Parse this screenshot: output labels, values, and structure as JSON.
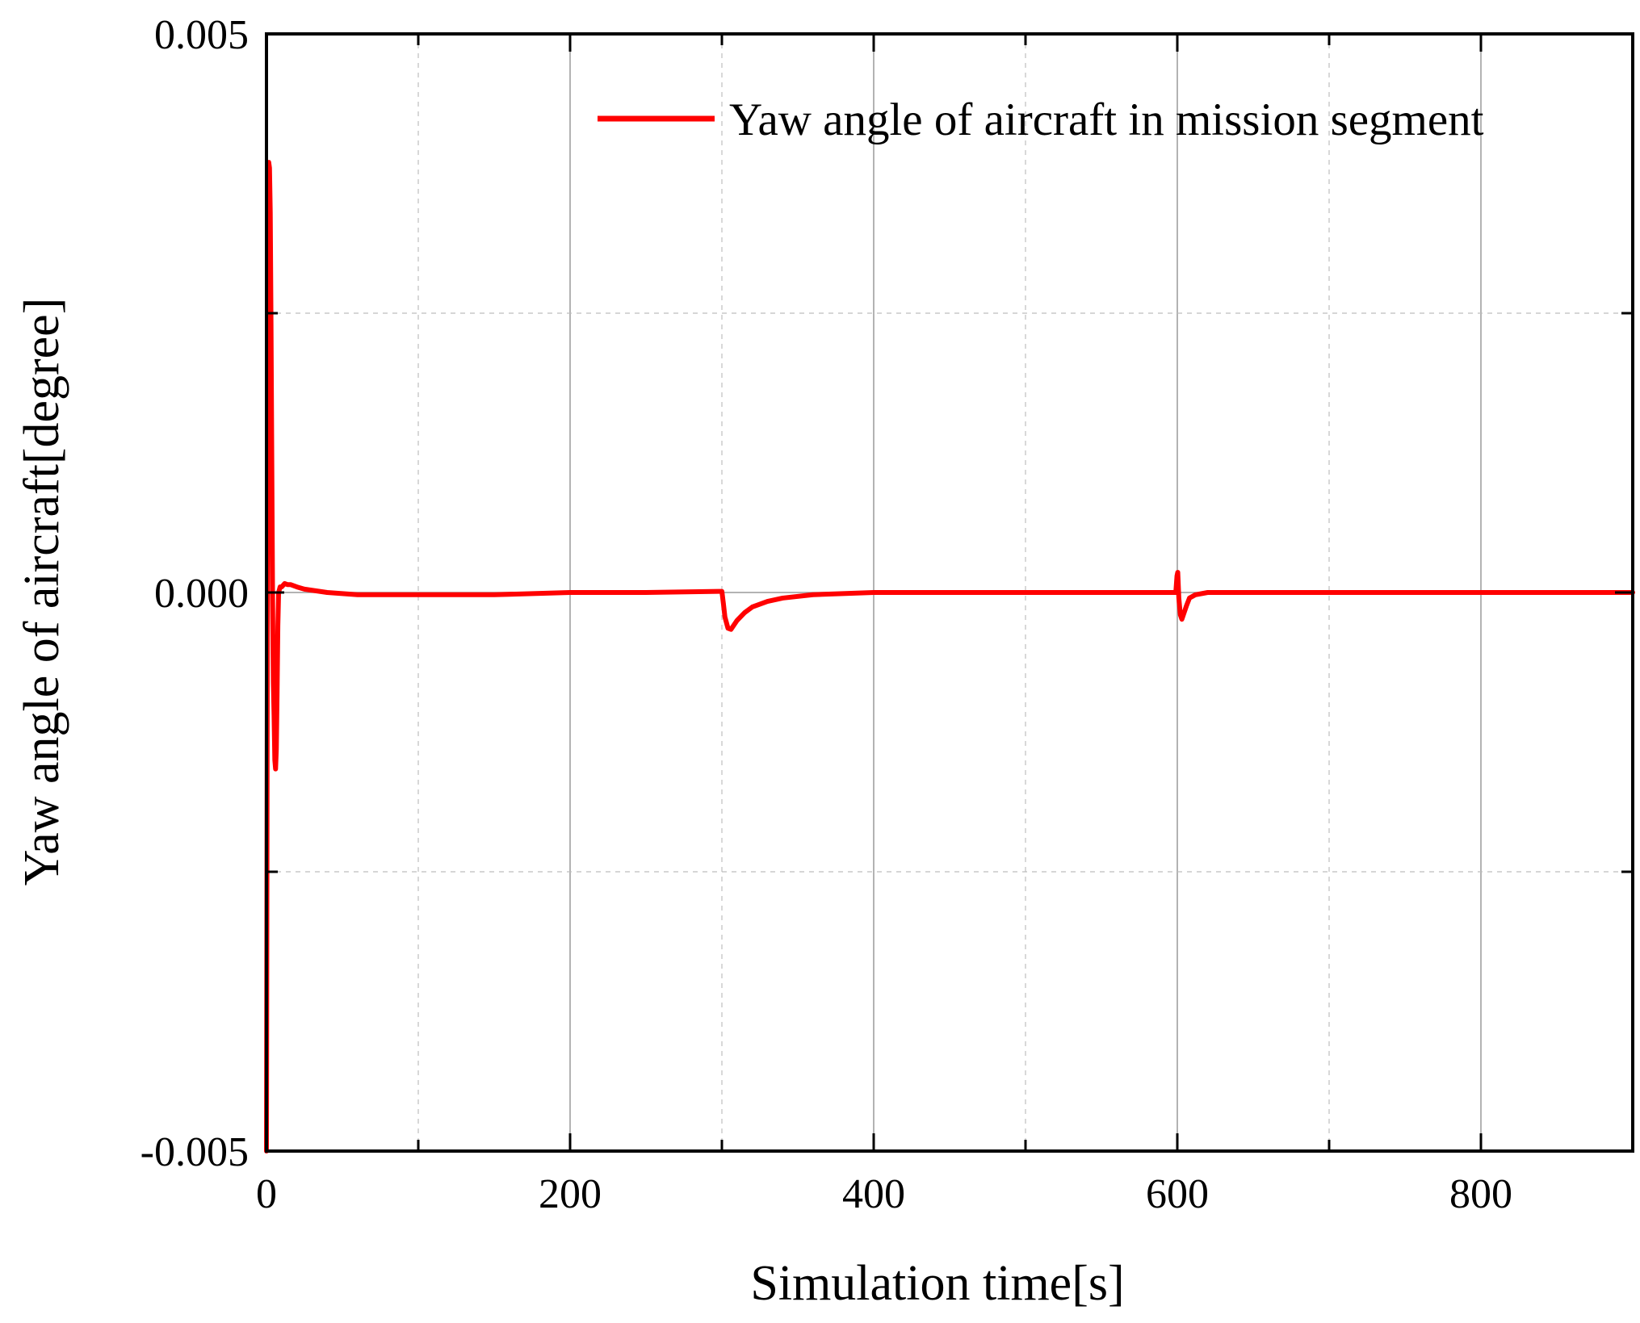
{
  "chart_data": {
    "type": "line",
    "title": "",
    "xlabel": "Simulation time[s]",
    "ylabel": "Yaw angle of aircraft[degree]",
    "xlim": [
      0,
      900
    ],
    "ylim": [
      -0.005,
      0.005
    ],
    "x_ticks": [
      0,
      200,
      400,
      600,
      800
    ],
    "x_tick_labels": [
      "0",
      "200",
      "400",
      "600",
      "800"
    ],
    "x_minor_ticks": [
      100,
      300,
      500,
      700
    ],
    "y_ticks": [
      -0.005,
      0.0,
      0.005
    ],
    "y_tick_labels": [
      "-0.005",
      "0.000",
      "0.005"
    ],
    "y_minor_ticks": [
      -0.0025,
      0.0025
    ],
    "grid": true,
    "legend_position": "top-right",
    "colors": {
      "series": "#ff0000",
      "axis": "#000000",
      "grid": "#bdbdbd"
    },
    "series": [
      {
        "name": "Yaw angle of aircraft in mission segment",
        "x": [
          0,
          0.5,
          1.0,
          1.5,
          2.0,
          2.5,
          3.0,
          3.5,
          4.0,
          4.5,
          5.0,
          5.5,
          6.0,
          6.5,
          7.0,
          7.5,
          8.0,
          9.0,
          10,
          12,
          14,
          16,
          20,
          25,
          30,
          40,
          50,
          60,
          80,
          100,
          150,
          200,
          250,
          299,
          300,
          301,
          302,
          304,
          306,
          310,
          315,
          320,
          330,
          340,
          360,
          400,
          500,
          599,
          599.8,
          600.3,
          601,
          602,
          603,
          604,
          606,
          608,
          612,
          620,
          650,
          700,
          800,
          900
        ],
        "y": [
          -0.005,
          -0.001,
          0.0032,
          0.00385,
          0.0038,
          0.0034,
          0.0024,
          0.0012,
          0.0,
          -0.0008,
          -0.0011,
          -0.0015,
          -0.00158,
          -0.0014,
          -0.0009,
          -0.0003,
          0.0,
          5e-05,
          5e-05,
          8e-05,
          7e-05,
          7e-05,
          5e-05,
          3e-05,
          2e-05,
          0.0,
          -1e-05,
          -2e-05,
          -2e-05,
          -2e-05,
          -2e-05,
          0.0,
          0.0,
          1e-05,
          1e-05,
          -0.0001,
          -0.00022,
          -0.00032,
          -0.00033,
          -0.00025,
          -0.00018,
          -0.00013,
          -8e-05,
          -5e-05,
          -2e-05,
          0.0,
          0.0,
          0.0,
          0.00015,
          0.00018,
          -5e-05,
          -0.0002,
          -0.00024,
          -0.0002,
          -0.00012,
          -5e-05,
          -2e-05,
          0.0,
          0.0,
          0.0,
          0.0,
          0.0
        ]
      }
    ]
  }
}
